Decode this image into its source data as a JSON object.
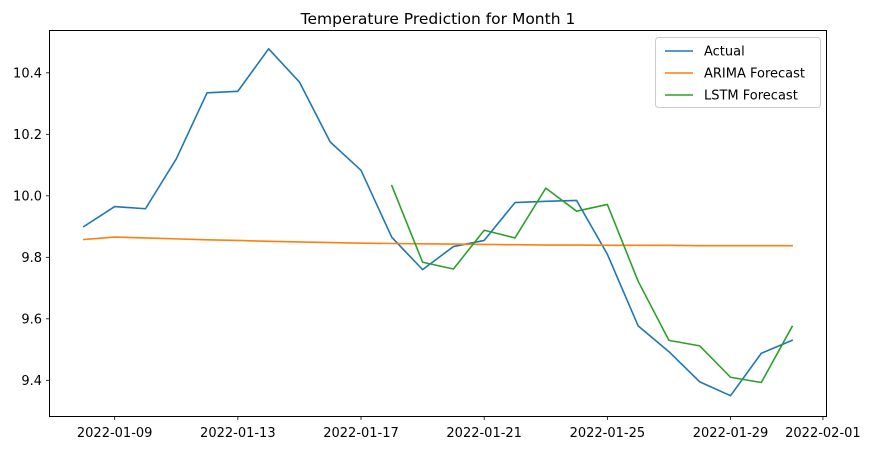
{
  "chart_data": {
    "type": "line",
    "title": "Temperature Prediction for Month 1",
    "xlabel": "",
    "ylabel": "",
    "x_ticks": [
      "2022-01-09",
      "2022-01-13",
      "2022-01-17",
      "2022-01-21",
      "2022-01-25",
      "2022-01-29",
      "2022-02-01"
    ],
    "y_ticks": [
      "9.4",
      "9.6",
      "9.8",
      "10.0",
      "10.2",
      "10.4"
    ],
    "xlim": [
      "2022-01-06 21:36",
      "2022-02-01 02:24"
    ],
    "ylim": [
      9.284,
      10.536
    ],
    "grid": false,
    "legend_position": "top-right",
    "series": [
      {
        "name": "Actual",
        "color": "#1f77b4",
        "x": [
          "2022-01-08",
          "2022-01-09",
          "2022-01-10",
          "2022-01-11",
          "2022-01-12",
          "2022-01-13",
          "2022-01-14",
          "2022-01-15",
          "2022-01-16",
          "2022-01-17",
          "2022-01-18",
          "2022-01-19",
          "2022-01-20",
          "2022-01-21",
          "2022-01-22",
          "2022-01-23",
          "2022-01-24",
          "2022-01-25",
          "2022-01-26",
          "2022-01-27",
          "2022-01-28",
          "2022-01-29",
          "2022-01-30",
          "2022-01-31"
        ],
        "values": [
          9.9,
          9.965,
          9.958,
          10.12,
          10.335,
          10.34,
          10.478,
          10.37,
          10.175,
          10.083,
          9.865,
          9.76,
          9.835,
          9.855,
          9.978,
          9.982,
          9.985,
          9.81,
          9.577,
          9.493,
          9.395,
          9.35,
          9.488,
          9.53
        ]
      },
      {
        "name": "ARIMA Forecast",
        "color": "#ff7f0e",
        "x": [
          "2022-01-08",
          "2022-01-09",
          "2022-01-10",
          "2022-01-11",
          "2022-01-12",
          "2022-01-13",
          "2022-01-14",
          "2022-01-15",
          "2022-01-16",
          "2022-01-17",
          "2022-01-18",
          "2022-01-19",
          "2022-01-20",
          "2022-01-21",
          "2022-01-22",
          "2022-01-23",
          "2022-01-24",
          "2022-01-25",
          "2022-01-26",
          "2022-01-27",
          "2022-01-28",
          "2022-01-29",
          "2022-01-30",
          "2022-01-31"
        ],
        "values": [
          9.858,
          9.866,
          9.863,
          9.86,
          9.857,
          9.855,
          9.852,
          9.85,
          9.848,
          9.846,
          9.845,
          9.844,
          9.843,
          9.842,
          9.841,
          9.84,
          9.84,
          9.839,
          9.839,
          9.839,
          9.838,
          9.838,
          9.838,
          9.838
        ]
      },
      {
        "name": "LSTM Forecast",
        "color": "#2ca02c",
        "x": [
          "2022-01-18",
          "2022-01-19",
          "2022-01-20",
          "2022-01-21",
          "2022-01-22",
          "2022-01-23",
          "2022-01-24",
          "2022-01-25",
          "2022-01-26",
          "2022-01-27",
          "2022-01-28",
          "2022-01-29",
          "2022-01-30",
          "2022-01-31"
        ],
        "values": [
          10.033,
          9.784,
          9.762,
          9.888,
          9.863,
          10.025,
          9.95,
          9.972,
          9.722,
          9.53,
          9.512,
          9.41,
          9.393,
          9.575
        ]
      }
    ]
  }
}
